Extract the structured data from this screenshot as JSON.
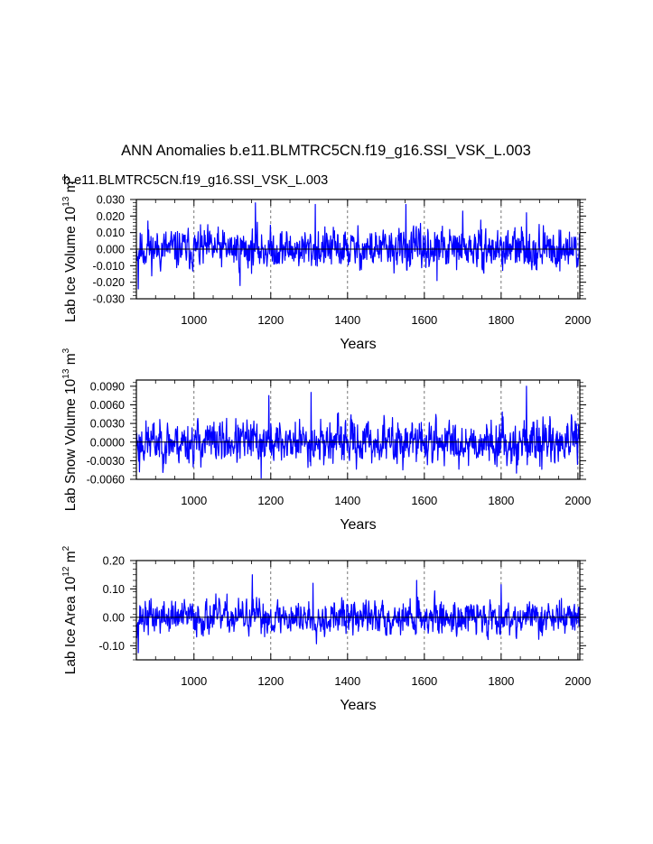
{
  "chart_data": {
    "type": "line",
    "title": "ANN Anomalies b.e11.BLMTRC5CN.f19_g16.SSI_VSK_L.003",
    "subtitle": "b.e11.BLMTRC5CN.f19_g16.SSI_VSK_L.003",
    "series_color": "#0000ff",
    "x_range": [
      850,
      2005
    ],
    "x_ticks": [
      1000,
      1200,
      1400,
      1600,
      1800,
      2000
    ],
    "x_tick_labels": [
      "1000",
      "1200",
      "1400",
      "1600",
      "1800",
      "2000"
    ],
    "panels": [
      {
        "name": "ice-volume",
        "ylabel": "Lab Ice Volume",
        "yunit_base": "10",
        "yunit_exp": "13",
        "yunit_dim": "m",
        "yunit_dim_exp": "3",
        "xlabel": "Years",
        "ylim": [
          -0.03,
          0.03
        ],
        "y_ticks": [
          -0.03,
          -0.02,
          -0.01,
          0.0,
          0.01,
          0.02,
          0.03
        ],
        "y_tick_labels": [
          "-0.030",
          "-0.020",
          "-0.010",
          "0.000",
          "0.010",
          "0.020",
          "0.030"
        ],
        "amplitude": 0.0055,
        "peaks": [
          [
            855,
            -0.024
          ],
          [
            880,
            0.017
          ],
          [
            1160,
            0.028
          ],
          [
            1120,
            -0.022
          ],
          [
            1316,
            0.027
          ],
          [
            1552,
            0.027
          ],
          [
            1700,
            0.023
          ],
          [
            1866,
            0.022
          ],
          [
            1633,
            -0.019
          ]
        ],
        "seed": 11
      },
      {
        "name": "snow-volume",
        "ylabel": "Lab Snow Volume",
        "yunit_base": "10",
        "yunit_exp": "13",
        "yunit_dim": "m",
        "yunit_dim_exp": "3",
        "xlabel": "Years",
        "ylim": [
          -0.006,
          0.01
        ],
        "y_ticks": [
          -0.006,
          -0.003,
          0.0,
          0.003,
          0.006,
          0.009
        ],
        "y_tick_labels": [
          "-0.0060",
          "-0.0030",
          "0.0000",
          "0.0030",
          "0.0060",
          "0.0090"
        ],
        "amplitude": 0.0016,
        "peaks": [
          [
            1305,
            0.008
          ],
          [
            1195,
            0.0075
          ],
          [
            1866,
            0.009
          ],
          [
            1175,
            -0.0058
          ],
          [
            1840,
            -0.005
          ],
          [
            858,
            -0.0048
          ]
        ],
        "seed": 23
      },
      {
        "name": "ice-area",
        "ylabel": "Lab Ice Area",
        "yunit_base": "10",
        "yunit_exp": "12",
        "yunit_dim": "m",
        "yunit_dim_exp": "2",
        "xlabel": "Years",
        "ylim": [
          -0.15,
          0.2
        ],
        "y_ticks": [
          -0.1,
          0.0,
          0.1,
          0.2
        ],
        "y_tick_labels": [
          "-0.10",
          "0.00",
          "0.10",
          "0.20"
        ],
        "amplitude": 0.028,
        "peaks": [
          [
            855,
            -0.125
          ],
          [
            1152,
            0.15
          ],
          [
            1580,
            0.13
          ],
          [
            1800,
            0.115
          ],
          [
            1310,
            0.12
          ]
        ],
        "seed": 37
      }
    ]
  }
}
